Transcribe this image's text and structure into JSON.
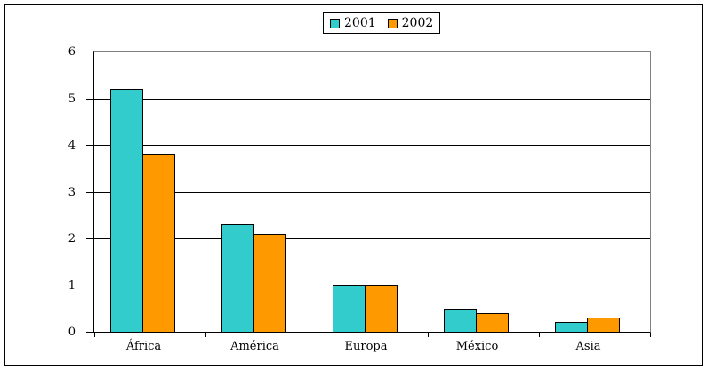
{
  "chart_data": {
    "type": "bar",
    "title": "",
    "xlabel": "",
    "ylabel": "",
    "categories": [
      "África",
      "América",
      "Europa",
      "México",
      "Asia"
    ],
    "series": [
      {
        "name": "2001",
        "color": "#33CCCC",
        "values": [
          5.2,
          2.3,
          1.0,
          0.5,
          0.2
        ]
      },
      {
        "name": "2002",
        "color": "#FF9900",
        "values": [
          3.8,
          2.1,
          1.0,
          0.4,
          0.3
        ]
      }
    ],
    "ylim": [
      0,
      6
    ],
    "ytick_step": 1,
    "yticks": [
      0,
      1,
      2,
      3,
      4,
      5,
      6
    ],
    "grid": "horizontal",
    "gridline_color": "#000000",
    "plot_border_color": "#808080",
    "bar_border_color": "#000000",
    "legend_position": "top-center",
    "background_color": "#FFFFFF"
  }
}
